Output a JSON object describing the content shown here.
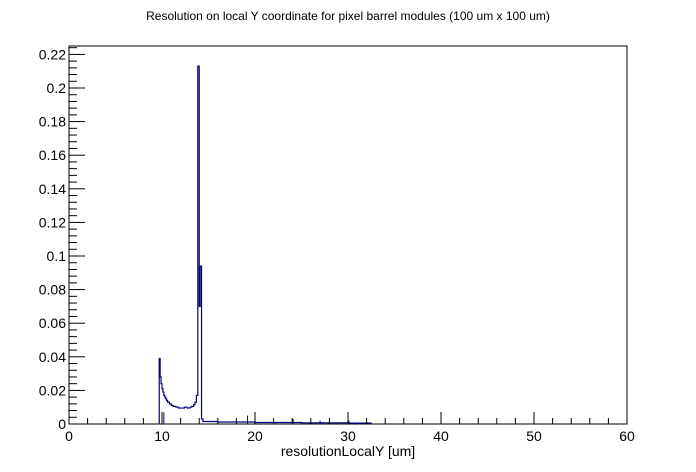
{
  "chart_data": {
    "type": "histogram",
    "title": "Resolution on local Y coordinate for pixel barrel modules (100 um x 100 um)",
    "xlabel": "resolutionLocalY [um]",
    "ylabel": "",
    "xlim": [
      0,
      60
    ],
    "ylim": [
      0,
      0.225
    ],
    "x_ticks": [
      0,
      10,
      20,
      30,
      40,
      50,
      60
    ],
    "x_tick_labels": [
      "0",
      "10",
      "20",
      "30",
      "40",
      "50",
      "60"
    ],
    "y_ticks": [
      0,
      0.02,
      0.04,
      0.06,
      0.08,
      0.1,
      0.12,
      0.14,
      0.16,
      0.18,
      0.2,
      0.22
    ],
    "y_tick_labels": [
      "0",
      "0.02",
      "0.04",
      "0.06",
      "0.08",
      "0.1",
      "0.12",
      "0.14",
      "0.16",
      "0.18",
      "0.2",
      "0.22"
    ],
    "grid": false,
    "line_color": "#000080",
    "bins": [
      [
        9.7,
        9.8,
        0.039
      ],
      [
        9.8,
        9.9,
        0.028
      ],
      [
        9.9,
        10.0,
        0.024
      ],
      [
        10.0,
        10.1,
        0.021
      ],
      [
        10.1,
        10.2,
        0.019
      ],
      [
        10.2,
        10.3,
        0.017
      ],
      [
        10.3,
        10.4,
        0.016
      ],
      [
        10.4,
        10.5,
        0.015
      ],
      [
        10.5,
        10.6,
        0.014
      ],
      [
        10.6,
        10.8,
        0.013
      ],
      [
        10.8,
        11.0,
        0.012
      ],
      [
        11.0,
        11.2,
        0.011
      ],
      [
        11.2,
        11.5,
        0.0105
      ],
      [
        11.5,
        11.8,
        0.01
      ],
      [
        11.8,
        12.1,
        0.0095
      ],
      [
        12.1,
        12.4,
        0.0095
      ],
      [
        12.4,
        12.7,
        0.01
      ],
      [
        12.7,
        13.0,
        0.0095
      ],
      [
        13.0,
        13.2,
        0.01
      ],
      [
        13.2,
        13.4,
        0.0105
      ],
      [
        13.4,
        13.55,
        0.0115
      ],
      [
        13.55,
        13.7,
        0.013
      ],
      [
        13.7,
        13.85,
        0.017
      ],
      [
        13.85,
        14.0,
        0.213
      ],
      [
        14.0,
        14.1,
        0.07
      ],
      [
        14.1,
        14.25,
        0.094
      ],
      [
        14.25,
        14.4,
        0.003
      ],
      [
        14.4,
        16.0,
        0.0015
      ],
      [
        16.0,
        20.0,
        0.0012
      ],
      [
        20.0,
        25.0,
        0.0009
      ],
      [
        25.0,
        30.0,
        0.0007
      ],
      [
        30.0,
        32.5,
        0.0005
      ]
    ],
    "spikes": [
      [
        10.2,
        0.007
      ],
      [
        19.2,
        0.005
      ],
      [
        24.1,
        0.003
      ],
      [
        27.0,
        0.002
      ],
      [
        30.1,
        0.002
      ]
    ]
  }
}
